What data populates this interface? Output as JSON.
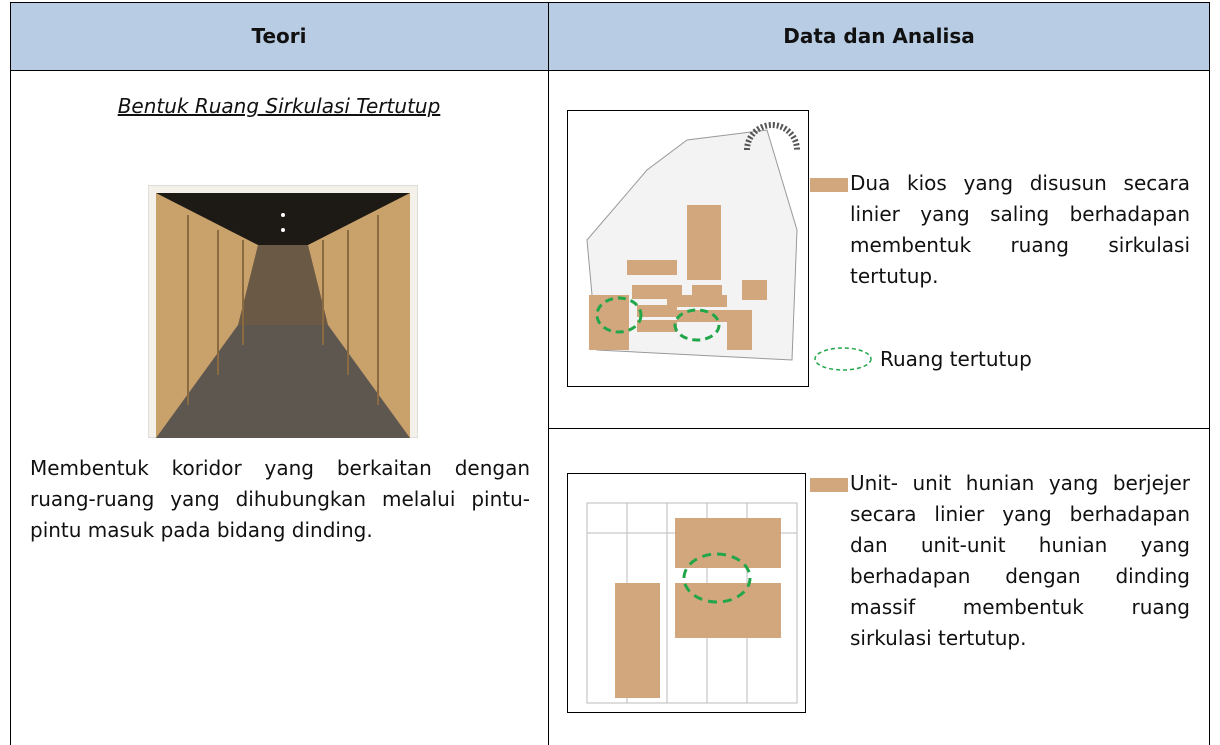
{
  "table": {
    "headers": [
      "Teori",
      "Data dan Analisa"
    ],
    "theory": {
      "title": "Bentuk Ruang Sirkulasi Tertutup",
      "text": "Membentuk koridor yang berkaitan dengan ruang-ruang yang dihubungkan melalui pintu-pintu masuk pada bidang dinding."
    },
    "analysis": [
      {
        "text": "Dua kios yang disusun secara linier yang saling berhadapan membentuk ruang sirkulasi tertutup.",
        "legend": "Ruang tertutup"
      },
      {
        "text": "Unit- unit hunian yang berjejer secara linier yang berhadapan dan unit-unit hunian yang berhadapan dengan dinding massif membentuk ruang sirkulasi tertutup."
      }
    ]
  }
}
